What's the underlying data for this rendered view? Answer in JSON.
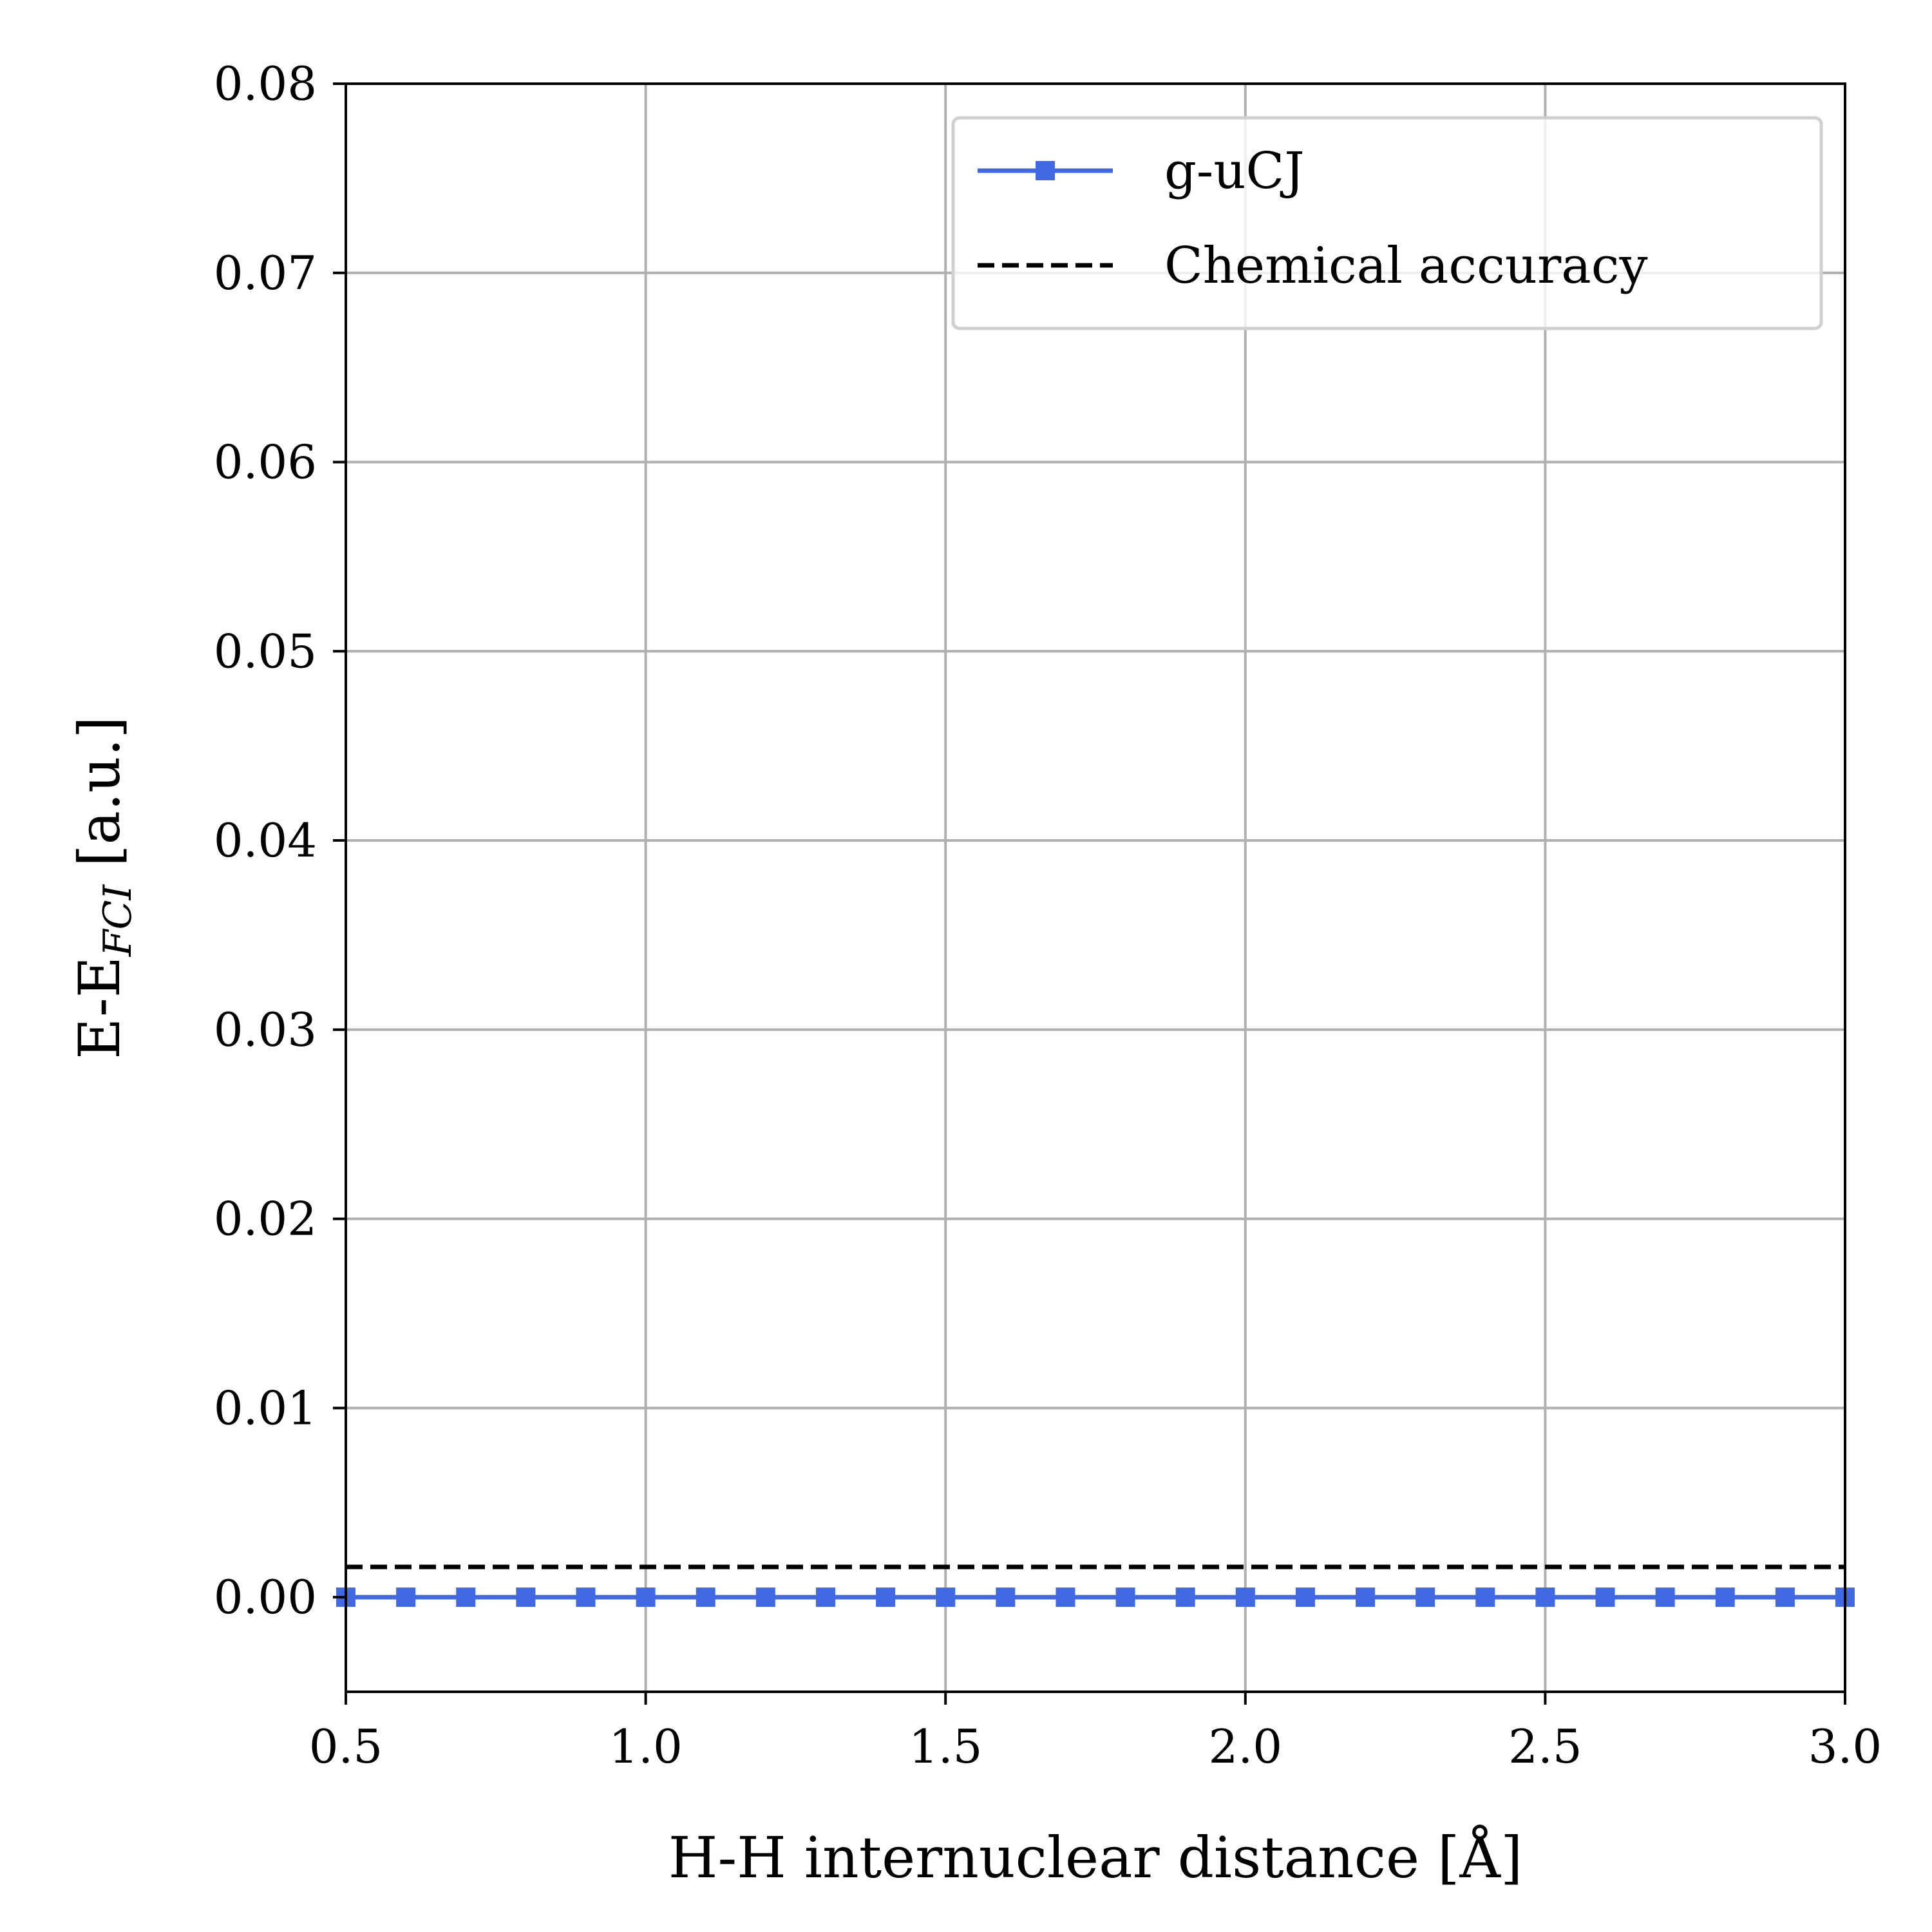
{
  "chart_data": {
    "type": "line",
    "title": "",
    "xlabel": "H-H internuclear distance [Å]",
    "ylabel": {
      "main": "E-E",
      "subscript": "FCI",
      "unit": " [a.u.]"
    },
    "xlim": [
      0.5,
      3.0
    ],
    "ylim": [
      -0.005,
      0.08
    ],
    "x_ticks": [
      0.5,
      1.0,
      1.5,
      2.0,
      2.5,
      3.0
    ],
    "x_tick_labels": [
      "0.5",
      "1.0",
      "1.5",
      "2.0",
      "2.5",
      "3.0"
    ],
    "y_ticks": [
      0.0,
      0.01,
      0.02,
      0.03,
      0.04,
      0.05,
      0.06,
      0.07,
      0.08
    ],
    "y_tick_labels": [
      "0.00",
      "0.01",
      "0.02",
      "0.03",
      "0.04",
      "0.05",
      "0.06",
      "0.07",
      "0.08"
    ],
    "grid": true,
    "legend_position": "top-right",
    "series": [
      {
        "name": "g-uCJ",
        "color": "#4169e1",
        "marker": "square",
        "line_style": "solid",
        "x": [
          0.5,
          0.6,
          0.7,
          0.8,
          0.9,
          1.0,
          1.1,
          1.2,
          1.3,
          1.4,
          1.5,
          1.6,
          1.7,
          1.8,
          1.9,
          2.0,
          2.1,
          2.2,
          2.3,
          2.4,
          2.5,
          2.6,
          2.7,
          2.8,
          2.9,
          3.0
        ],
        "y": [
          0,
          0,
          0,
          0,
          0,
          0,
          0,
          0,
          0,
          0,
          0,
          0,
          0,
          0,
          0,
          0,
          0,
          0,
          0,
          0,
          0,
          0,
          0,
          0,
          0,
          0
        ]
      },
      {
        "name": "Chemical accuracy",
        "color": "#000000",
        "marker": "none",
        "line_style": "dashed",
        "x": [
          0.5,
          3.0
        ],
        "y": [
          0.0016,
          0.0016
        ]
      }
    ]
  }
}
